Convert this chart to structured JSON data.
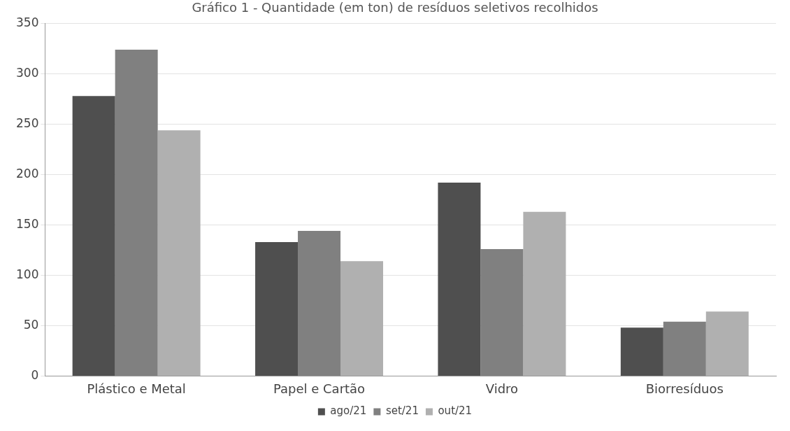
{
  "chart_data": {
    "type": "bar",
    "title": "Gráfico 1 - Quantidade (em ton) de resíduos seletivos recolhidos",
    "categories": [
      "Plástico e Metal",
      "Papel e Cartão",
      "Vidro",
      "Biorresíduos"
    ],
    "series": [
      {
        "name": "ago/21",
        "color": "#4f4f4f",
        "values": [
          278,
          133,
          192,
          48
        ]
      },
      {
        "name": "set/21",
        "color": "#808080",
        "values": [
          324,
          144,
          126,
          54
        ]
      },
      {
        "name": "out/21",
        "color": "#b0b0b0",
        "values": [
          244,
          114,
          163,
          64
        ]
      }
    ],
    "ylim": [
      0,
      350
    ],
    "yticks": [
      0,
      50,
      100,
      150,
      200,
      250,
      300,
      350
    ],
    "grid": "y",
    "legend": "bottom"
  }
}
